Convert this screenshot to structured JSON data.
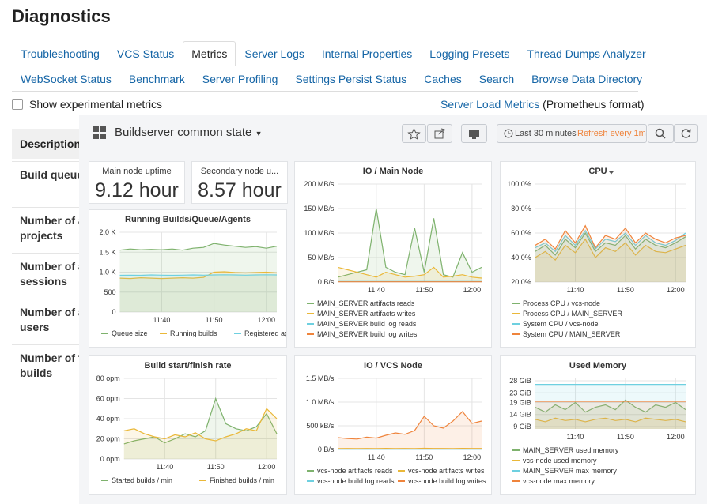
{
  "page": {
    "title": "Diagnostics",
    "tabs_row1": [
      "Troubleshooting",
      "VCS Status",
      "Metrics",
      "Server Logs",
      "Internal Properties",
      "Logging Presets",
      "Thread Dumps Analyzer"
    ],
    "tabs_row2": [
      "WebSocket Status",
      "Benchmark",
      "Server Profiling",
      "Settings Persist Status",
      "Caches",
      "Search",
      "Browse Data Directory"
    ],
    "active_tab": 2,
    "checkbox_label": "Show experimental metrics",
    "metrics_link": "Server Load Metrics",
    "metrics_note": "(Prometheus format)",
    "table": {
      "header": "Description",
      "rows": [
        [
          "Build queue"
        ],
        [
          "Number of a",
          "projects"
        ],
        [
          "Number of a",
          "sessions"
        ],
        [
          "Number of a",
          "users"
        ],
        [
          "Number of f",
          "builds"
        ]
      ]
    }
  },
  "dashboard": {
    "title": "Buildserver common state",
    "time_range": "Last 30 minutes",
    "refresh": "Refresh every 1m",
    "stats": [
      {
        "title": "Main node uptime",
        "value": 9.12,
        "unit": "hour"
      },
      {
        "title": "Secondary node u...",
        "value": 8.57,
        "unit": "hour"
      }
    ],
    "panels": [
      {
        "type": "line",
        "title": "Running Builds/Queue/Agents",
        "legend": "row",
        "x": [
          32,
          34,
          36,
          38,
          40,
          42,
          44,
          46,
          48,
          50,
          52,
          54,
          56,
          58,
          60,
          62
        ],
        "xlim": [
          32,
          62
        ],
        "xticks": [
          {
            "value": 40,
            "label": "11:40"
          },
          {
            "value": 50,
            "label": "11:50"
          },
          {
            "value": 60,
            "label": "12:00"
          }
        ],
        "ylim": [
          0,
          2000
        ],
        "yticks": [
          0,
          500,
          {
            "value": 1000,
            "label": "1.0 K"
          },
          {
            "value": 1500,
            "label": "1.5 K"
          },
          {
            "value": 2000,
            "label": "2.0 K"
          }
        ],
        "series": [
          {
            "name": "Queue size",
            "color": "#7eb26d",
            "values": [
              1550,
              1580,
              1560,
              1570,
              1560,
              1580,
              1550,
              1600,
              1620,
              1720,
              1680,
              1650,
              1620,
              1640,
              1600,
              1650
            ]
          },
          {
            "name": "Running builds",
            "color": "#eab839",
            "values": [
              850,
              840,
              860,
              850,
              840,
              850,
              860,
              850,
              870,
              1000,
              1010,
              990,
              980,
              990,
              1000,
              980
            ]
          },
          {
            "name": "Registered agents",
            "color": "#6ed0e0",
            "values": [
              920,
              925,
              920,
              930,
              925,
              920,
              925,
              930,
              925,
              930,
              935,
              930,
              925,
              930,
              935,
              930
            ]
          }
        ]
      },
      {
        "type": "line",
        "title": "IO / Main Node",
        "legend": "list",
        "x": [
          32,
          34,
          36,
          38,
          40,
          42,
          44,
          46,
          48,
          50,
          52,
          54,
          56,
          58,
          60,
          62
        ],
        "xlim": [
          32,
          62
        ],
        "xticks": [
          {
            "value": 40,
            "label": "11:40"
          },
          {
            "value": 50,
            "label": "11:50"
          },
          {
            "value": 60,
            "label": "12:00"
          }
        ],
        "ylim": [
          0,
          200
        ],
        "yticks": [
          {
            "value": 0,
            "label": "0 B/s"
          },
          {
            "value": 50,
            "label": "50 MB/s"
          },
          {
            "value": 100,
            "label": "100 MB/s"
          },
          {
            "value": 150,
            "label": "150 MB/s"
          },
          {
            "value": 200,
            "label": "200 MB/s"
          }
        ],
        "series": [
          {
            "name": "MAIN_SERVER artifacts reads",
            "color": "#7eb26d",
            "values": [
              10,
              15,
              20,
              25,
              150,
              30,
              20,
              15,
              110,
              20,
              130,
              15,
              10,
              60,
              20,
              30
            ]
          },
          {
            "name": "MAIN_SERVER artifacts writes",
            "color": "#eab839",
            "values": [
              30,
              25,
              20,
              15,
              10,
              20,
              15,
              10,
              12,
              15,
              30,
              10,
              12,
              15,
              10,
              8
            ]
          },
          {
            "name": "MAIN_SERVER build log reads",
            "color": "#6ed0e0",
            "values": [
              1,
              1,
              1,
              1,
              1,
              1,
              1,
              1,
              1,
              1,
              1,
              1,
              1,
              1,
              1,
              1
            ]
          },
          {
            "name": "MAIN_SERVER build log writes",
            "color": "#ef843c",
            "values": [
              0.5,
              0.5,
              0.5,
              0.5,
              0.5,
              0.5,
              0.5,
              0.5,
              0.5,
              0.5,
              0.5,
              0.5,
              0.5,
              0.5,
              0.5,
              0.5
            ]
          }
        ]
      },
      {
        "type": "line",
        "title": "CPU",
        "legend": "list",
        "menu": true,
        "x": [
          32,
          34,
          36,
          38,
          40,
          42,
          44,
          46,
          48,
          50,
          52,
          54,
          56,
          58,
          60,
          62
        ],
        "xlim": [
          32,
          62
        ],
        "xticks": [
          {
            "value": 40,
            "label": "11:40"
          },
          {
            "value": 50,
            "label": "11:50"
          },
          {
            "value": 60,
            "label": "12:00"
          }
        ],
        "ylim": [
          20,
          100
        ],
        "yticks": [
          {
            "value": 20,
            "label": "20.0%"
          },
          {
            "value": 40,
            "label": "40.0%"
          },
          {
            "value": 60,
            "label": "60.0%"
          },
          {
            "value": 80,
            "label": "80.0%"
          },
          {
            "value": 100,
            "label": "100.0%"
          }
        ],
        "series": [
          {
            "name": "Process CPU / vcs-node",
            "color": "#7eb26d",
            "values": [
              45,
              50,
              42,
              55,
              48,
              60,
              45,
              52,
              50,
              58,
              47,
              55,
              50,
              48,
              52,
              57
            ]
          },
          {
            "name": "Process CPU / MAIN_SERVER",
            "color": "#eab839",
            "values": [
              40,
              45,
              38,
              50,
              44,
              55,
              40,
              48,
              45,
              52,
              42,
              50,
              45,
              44,
              47,
              50
            ]
          },
          {
            "name": "System CPU / vcs-node",
            "color": "#6ed0e0",
            "values": [
              48,
              52,
              45,
              58,
              50,
              62,
              47,
              55,
              53,
              60,
              50,
              58,
              52,
              50,
              54,
              60
            ]
          },
          {
            "name": "System CPU / MAIN_SERVER",
            "color": "#ef843c",
            "values": [
              50,
              55,
              47,
              62,
              52,
              66,
              48,
              58,
              55,
              64,
              52,
              60,
              55,
              52,
              56,
              58
            ]
          }
        ]
      },
      {
        "type": "line",
        "title": "Build start/finish rate",
        "legend": "row",
        "x": [
          32,
          34,
          36,
          38,
          40,
          42,
          44,
          46,
          48,
          50,
          52,
          54,
          56,
          58,
          60,
          62
        ],
        "xlim": [
          32,
          62
        ],
        "xticks": [
          {
            "value": 40,
            "label": "11:40"
          },
          {
            "value": 50,
            "label": "11:50"
          },
          {
            "value": 60,
            "label": "12:00"
          }
        ],
        "ylim": [
          0,
          80
        ],
        "yticks": [
          {
            "value": 0,
            "label": "0 opm"
          },
          {
            "value": 20,
            "label": "20 opm"
          },
          {
            "value": 40,
            "label": "40 opm"
          },
          {
            "value": 60,
            "label": "60 opm"
          },
          {
            "value": 80,
            "label": "80 opm"
          }
        ],
        "series": [
          {
            "name": "Started builds / min",
            "color": "#7eb26d",
            "values": [
              15,
              18,
              20,
              22,
              16,
              20,
              25,
              22,
              28,
              60,
              35,
              30,
              28,
              32,
              45,
              25
            ]
          },
          {
            "name": "Finished builds / min",
            "color": "#eab839",
            "values": [
              28,
              30,
              25,
              22,
              20,
              24,
              22,
              26,
              20,
              18,
              22,
              25,
              30,
              28,
              50,
              40
            ]
          }
        ]
      },
      {
        "type": "line",
        "title": "IO / VCS Node",
        "legend": "grid",
        "x": [
          32,
          34,
          36,
          38,
          40,
          42,
          44,
          46,
          48,
          50,
          52,
          54,
          56,
          58,
          60,
          62
        ],
        "xlim": [
          32,
          62
        ],
        "xticks": [
          {
            "value": 40,
            "label": "11:40"
          },
          {
            "value": 50,
            "label": "11:50"
          },
          {
            "value": 60,
            "label": "12:00"
          }
        ],
        "ylim": [
          0,
          1500
        ],
        "yticks": [
          {
            "value": 0,
            "label": "0 B/s"
          },
          {
            "value": 500,
            "label": "500 kB/s"
          },
          {
            "value": 1000,
            "label": "1.0 MB/s"
          },
          {
            "value": 1500,
            "label": "1.5 MB/s"
          }
        ],
        "series": [
          {
            "name": "vcs-node artifacts reads",
            "color": "#7eb26d",
            "values": [
              10,
              12,
              10,
              11,
              10,
              12,
              10,
              11,
              10,
              12,
              10,
              11,
              10,
              12,
              10,
              11
            ]
          },
          {
            "name": "vcs-node artifacts writes",
            "color": "#eab839",
            "values": [
              20,
              22,
              18,
              21,
              20,
              24,
              19,
              22,
              20,
              25,
              21,
              22,
              20,
              23,
              21,
              22
            ]
          },
          {
            "name": "vcs-node build log reads",
            "color": "#6ed0e0",
            "values": [
              5,
              5,
              5,
              5,
              5,
              5,
              5,
              5,
              5,
              5,
              5,
              5,
              5,
              5,
              5,
              5
            ]
          },
          {
            "name": "vcs-node build log writes",
            "color": "#ef843c",
            "values": [
              250,
              230,
              220,
              260,
              240,
              300,
              350,
              320,
              400,
              700,
              500,
              450,
              600,
              800,
              550,
              600
            ]
          }
        ]
      },
      {
        "type": "line",
        "title": "Used Memory",
        "legend": "list",
        "x": [
          32,
          34,
          36,
          38,
          40,
          42,
          44,
          46,
          48,
          50,
          52,
          54,
          56,
          58,
          60,
          62
        ],
        "xlim": [
          32,
          62
        ],
        "xticks": [
          {
            "value": 40,
            "label": "11:40"
          },
          {
            "value": 50,
            "label": "11:50"
          },
          {
            "value": 60,
            "label": "12:00"
          }
        ],
        "ylim": [
          8,
          29
        ],
        "yticks": [
          {
            "value": 9,
            "label": "9 GiB"
          },
          {
            "value": 14,
            "label": "14 GiB"
          },
          {
            "value": 19,
            "label": "19 GiB"
          },
          {
            "value": 23,
            "label": "23 GiB"
          },
          {
            "value": 28,
            "label": "28 GiB"
          }
        ],
        "series": [
          {
            "name": "MAIN_SERVER used memory",
            "color": "#7eb26d",
            "values": [
              17,
              15,
              18,
              16,
              19,
              15,
              17,
              18,
              16,
              20,
              17,
              15,
              18,
              17,
              19,
              16
            ]
          },
          {
            "name": "vcs-node used memory",
            "color": "#eab839",
            "values": [
              12,
              11,
              12.5,
              11.5,
              12,
              11,
              12,
              12.5,
              11.5,
              12,
              11,
              12.5,
              12,
              11.5,
              12,
              11
            ]
          },
          {
            "name": "MAIN_SERVER max memory",
            "color": "#6ed0e0",
            "values": [
              26.5,
              26.5,
              26.5,
              26.5,
              26.5,
              26.5,
              26.5,
              26.5,
              26.5,
              26.5,
              26.5,
              26.5,
              26.5,
              26.5,
              26.5,
              26.5
            ]
          },
          {
            "name": "vcs-node max memory",
            "color": "#ef843c",
            "values": [
              19.5,
              19.5,
              19.5,
              19.5,
              19.5,
              19.5,
              19.5,
              19.5,
              19.5,
              19.5,
              19.5,
              19.5,
              19.5,
              19.5,
              19.5,
              19.5
            ]
          }
        ]
      }
    ]
  }
}
